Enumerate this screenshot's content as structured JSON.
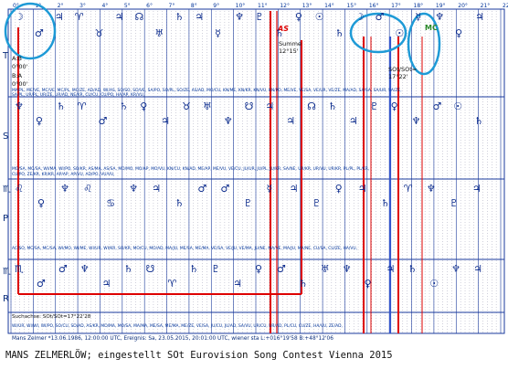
{
  "degree_labels": [
    "0°",
    "1°",
    "2°",
    "3°",
    "4°",
    "5°",
    "6°",
    "7°",
    "8°",
    "9°",
    "10°",
    "11°",
    "12°",
    "13°",
    "14°",
    "15°",
    "16°",
    "17°",
    "18°",
    "19°",
    "20°",
    "21°",
    "22°"
  ],
  "row_labels": [
    {
      "key": "t",
      "text": "T"
    },
    {
      "key": "s",
      "text": "S"
    },
    {
      "key": "p",
      "text": "P"
    },
    {
      "key": "r",
      "text": "R"
    },
    {
      "key": "s-glyph",
      "text": "♏"
    },
    {
      "key": "r-glyph",
      "text": "♏"
    }
  ],
  "side_labels": {
    "ab": "A:B",
    "ab_deg": "0°00'",
    "ba": "B:A",
    "ba_deg": "0°00'",
    "summe": "Summe",
    "summe_time": "12°15'",
    "sot": "SOt/SOt=",
    "sot_time": "17°22'"
  },
  "top_markers": {
    "as": "AS",
    "mc": "MC"
  },
  "aspect_rows": [
    "MA/PL, ME/VE, MC/VE, MC/PL, MC/ZE, AD/AD, WI/AS, SO/SO, SO/VE, SA/PO, SO/PL, SO/ZE, AS/AD, MO/CU, KN/ME, KN/KR, KN/VU, KN/PO, ME/VE, VE/SA, VE/UR, VE/ZE, MA/AD, SA/SA, SA/UR, SA/ZE,",
    "SA/PL, UR/PL, UR/ZE, UR/AD, NE/KR, CU/CU, CU/PO, HA/AP, KR/VU,",
    "MO/SA, MC/SA, WI/MA, WI/PO, SO/KR, AS/MA, AS/SA, MO/MO, MO/AP, MO/VU, KN/CU, KN/AD, ME/AP, ME/VU, VE/CU, JU/UR, JU/PL, JU/KR, SA/NE, UR/KR, UR/VU, UR/KR, PL/PL, PL/KR,",
    "CU/PO, ZE/KR, KR/KR, AP/AP, AP/VU, AD/PO, VU/VU,",
    "AC/SO, MC/SA, MC/SA, WI/MO, WI/ME, WI/UR, WI/KR, SO/KR, MO/CU, MO/AD, MA/JU, ME/SA, ME/MA, VE/SA, VE/JU, VE/MA, JU/NE, MA/VE, MA/JU, MA/NE, CU/SA, CU/ZE, HA/VU,",
    "WI/UR, WI/WI, WI/PO, SO/CU, SO/AD, AS/KR, MO/MA, MO/SA, MA/MA, ME/SA, ME/MA, ME/ZE, VE/SA, JU/CU, JU/AD, SA/VU, UR/CU, UR/AD, PL/CU, CU/ZE, HA/VU, ZE/AD,"
  ],
  "search_label": "Suchachse: SOt/SOt=17°22'28",
  "footer_line": "Mans Zelmer  *13.06.1986, 12:00:00 UTC, Ereignis:  Sa, 23.05.2015, 20:01:00 UTC, wiener sta          L:+016°19'58  B:+48°12'06",
  "caption": "MANS ZELMERLÖW; eingestellt SOt Eurovision Song Contest Vienna 2015",
  "colors": {
    "grid_blue": "#1a3a9c",
    "red": "#dd0000",
    "highlight": "#1e9ad6",
    "dashed": "#7a7a9a"
  },
  "glyphs": {
    "t_row": [
      "☽",
      "♂",
      "♃",
      "♈",
      "♉",
      "♃",
      "☊",
      "♅",
      "♄",
      "♃",
      "☿",
      "♆",
      "♇",
      "♄",
      "♀",
      "☉",
      "♄",
      "☽",
      "♂",
      "☉",
      "☿",
      "♆",
      "♀",
      "♃"
    ],
    "s_row": [
      "♆",
      "♀",
      "♄",
      "♈",
      "♂",
      "♄",
      "♀",
      "♃",
      "♉",
      "♅",
      "♆",
      "☋",
      "♃",
      "♃",
      "☊",
      "♄",
      "♃",
      "♇",
      "♀",
      "♆",
      "♂",
      "☉",
      "♄"
    ],
    "p_row": [
      "♌",
      "♀",
      "♆",
      "♌",
      "♋",
      "♆",
      "♃",
      "♄",
      "♂",
      "♂",
      "♇",
      "☿",
      "♃",
      "♇",
      "♀",
      "♃",
      "♄",
      "♈",
      "♆",
      "♇",
      "♃"
    ],
    "r_row": [
      "♏",
      "♂",
      "♂",
      "♆",
      "♃",
      "♄",
      "☋",
      "♈",
      "♄",
      "♇",
      "♃",
      "♀",
      "♂",
      "♄",
      "♅",
      "♆",
      "♀",
      "♃",
      "♄",
      "☉",
      "♆",
      "♃"
    ]
  }
}
